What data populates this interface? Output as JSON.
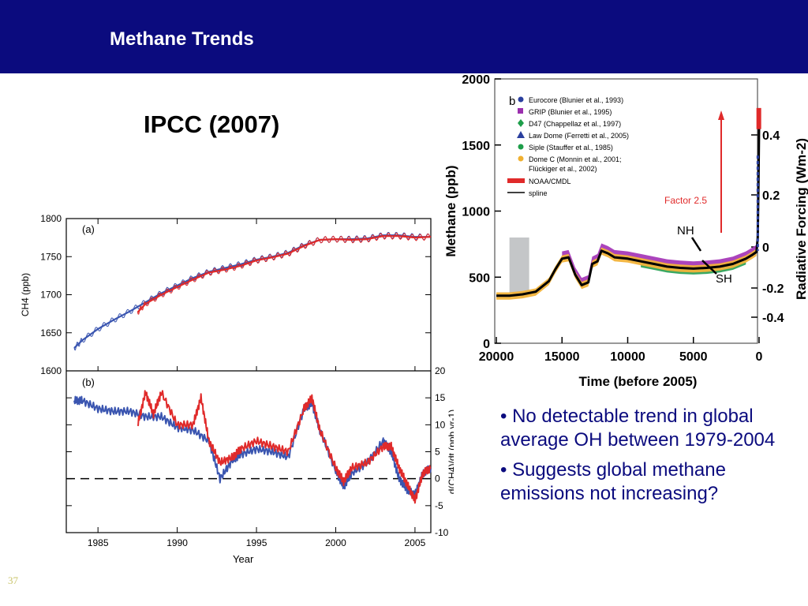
{
  "header": {
    "title": "Methane Trends"
  },
  "subtitle": "IPCC (2007)",
  "bullets": [
    "• No detectable trend in global average OH between 1979-2004",
    "• Suggests global methane emissions not increasing?"
  ],
  "slide_number": "37",
  "colors": {
    "header_bg": "#0b0b7e",
    "bullet_text": "#0b0b7e",
    "series_blue": "#3a55b0",
    "series_red": "#e02a2a"
  },
  "chart_data": [
    {
      "type": "line",
      "panel_label": "(a)",
      "xlabel": "Year",
      "ylabel": "CH4 (ppb)",
      "xlim": [
        1983,
        2006
      ],
      "ylim": [
        1600,
        1800
      ],
      "x_ticks": [
        "1985",
        "1990",
        "1995",
        "2000",
        "2005"
      ],
      "y_ticks": [
        "1600",
        "1650",
        "1700",
        "1750",
        "1800"
      ],
      "series": [
        {
          "x": [
            1983.5,
            1984,
            1985,
            1986,
            1987,
            1988,
            1989,
            1990,
            1991,
            1992,
            1993,
            1994,
            1995,
            1996,
            1997,
            1998,
            1999,
            2000,
            2001,
            2002,
            2003,
            2004,
            2005,
            2006
          ],
          "values": [
            1630,
            1640,
            1655,
            1667,
            1678,
            1690,
            1702,
            1712,
            1722,
            1730,
            1735,
            1740,
            1746,
            1750,
            1755,
            1765,
            1772,
            1773,
            1773,
            1774,
            1778,
            1778,
            1776,
            1776
          ]
        },
        {
          "x": [
            1987.5,
            1988,
            1989,
            1990,
            1991,
            1992,
            1993,
            1994,
            1995,
            1996,
            1997,
            1998,
            1999,
            2000,
            2001,
            2002,
            2003,
            2004,
            2005,
            2006
          ],
          "values": [
            1677,
            1688,
            1700,
            1710,
            1720,
            1729,
            1733,
            1738,
            1745,
            1749,
            1754,
            1764,
            1772,
            1773,
            1772,
            1773,
            1777,
            1777,
            1775,
            1776
          ]
        }
      ]
    },
    {
      "type": "line",
      "panel_label": "(b)",
      "xlabel": "Year",
      "ylabel": "d(CH4)/dt (ppb yr-1)",
      "xlim": [
        1983,
        2006
      ],
      "ylim": [
        -10,
        20
      ],
      "x_ticks": [
        "1985",
        "1990",
        "1995",
        "2000",
        "2005"
      ],
      "y_ticks": [
        "20",
        "15",
        "10",
        "5",
        "0",
        "-5",
        "-10"
      ],
      "zero_line": true,
      "series": [
        {
          "x": [
            1983.5,
            1984,
            1985,
            1986,
            1987,
            1988,
            1989,
            1990,
            1991,
            1992,
            1992.7,
            1993.5,
            1994,
            1995,
            1996,
            1997,
            1998,
            1998.5,
            1999,
            2000,
            2000.5,
            2001,
            2002,
            2003,
            2003.5,
            2004,
            2004.5,
            2005,
            2005.5,
            2006
          ],
          "values": [
            14.5,
            14.5,
            13,
            12.5,
            12.5,
            11.5,
            11.5,
            9.5,
            9,
            7,
            0,
            3.5,
            4.5,
            5.5,
            5,
            4,
            13,
            14,
            9,
            1.5,
            -1.5,
            1,
            3,
            7,
            5,
            0,
            -2,
            -3,
            1,
            2
          ]
        },
        {
          "x": [
            1987.5,
            1988,
            1988.5,
            1989,
            1990,
            1991,
            1991.5,
            1992,
            1992.7,
            1993.5,
            1994,
            1995,
            1996,
            1997,
            1998,
            1998.5,
            1999,
            2000,
            2000.5,
            2001,
            2002,
            2003,
            2003.5,
            2004,
            2004.5,
            2005,
            2005.5,
            2006
          ],
          "values": [
            10,
            16,
            12,
            16,
            10,
            10,
            15,
            7,
            3,
            4,
            5.5,
            7,
            6,
            5,
            13,
            15,
            9,
            2,
            -0.5,
            2,
            3,
            6,
            6,
            2,
            -1,
            -4,
            1,
            2
          ]
        }
      ]
    },
    {
      "type": "scatter",
      "panel_label": "b",
      "xlabel": "Time (before 2005)",
      "ylabel": "Methane (ppb)",
      "y2label": "Radiative Forcing (Wm-2)",
      "xlim": [
        20000,
        0
      ],
      "ylim": [
        0,
        2000
      ],
      "x_ticks": [
        "20000",
        "15000",
        "10000",
        "5000",
        "0"
      ],
      "y_ticks": [
        "0",
        "500",
        "1000",
        "1500",
        "2000"
      ],
      "y2_ticks": [
        "0.4",
        "0.2",
        "0",
        "-0.2",
        "-0.4"
      ],
      "legend": [
        {
          "label": "Eurocore  (Blunier et al., 1993)",
          "color": "#2a3f9e",
          "marker": "circle"
        },
        {
          "label": "GRIP (Blunier et al., 1995)",
          "color": "#9b2fae",
          "marker": "square"
        },
        {
          "label": "D47 (Chappellaz et al., 1997)",
          "color": "#1e9e4a",
          "marker": "diamond"
        },
        {
          "label": "Law Dome (Ferretti et al., 2005)",
          "color": "#2a3f9e",
          "marker": "triangle"
        },
        {
          "label": "Siple (Stauffer et al., 1985)",
          "color": "#1e9e4a",
          "marker": "circle"
        },
        {
          "label": "Dome C (Monnin et al., 2001; Flückiger et al., 2002)",
          "color": "#f0b030",
          "marker": "circle"
        },
        {
          "label": "NOAA/CMDL",
          "color": "#e02a2a",
          "marker": "bar"
        },
        {
          "label": "spline",
          "color": "#000000",
          "marker": "line"
        }
      ],
      "legend_position": "top-left",
      "annotations": [
        "Factor 2.5",
        "NH",
        "SH"
      ],
      "spline": {
        "x": [
          20000,
          19000,
          18000,
          17000,
          16000,
          15500,
          15000,
          14500,
          14000,
          13500,
          13000,
          12700,
          12300,
          12000,
          11500,
          11000,
          10000,
          9000,
          8000,
          7000,
          6000,
          5000,
          4000,
          3000,
          2000,
          1000,
          500,
          200,
          100,
          50,
          0
        ],
        "values": [
          360,
          360,
          370,
          390,
          470,
          560,
          640,
          650,
          520,
          440,
          460,
          600,
          620,
          700,
          680,
          650,
          640,
          620,
          600,
          580,
          570,
          565,
          570,
          580,
          600,
          640,
          670,
          690,
          800,
          1200,
          1650
        ]
      },
      "highlight_band": {
        "x": [
          19000,
          17500
        ]
      }
    }
  ]
}
